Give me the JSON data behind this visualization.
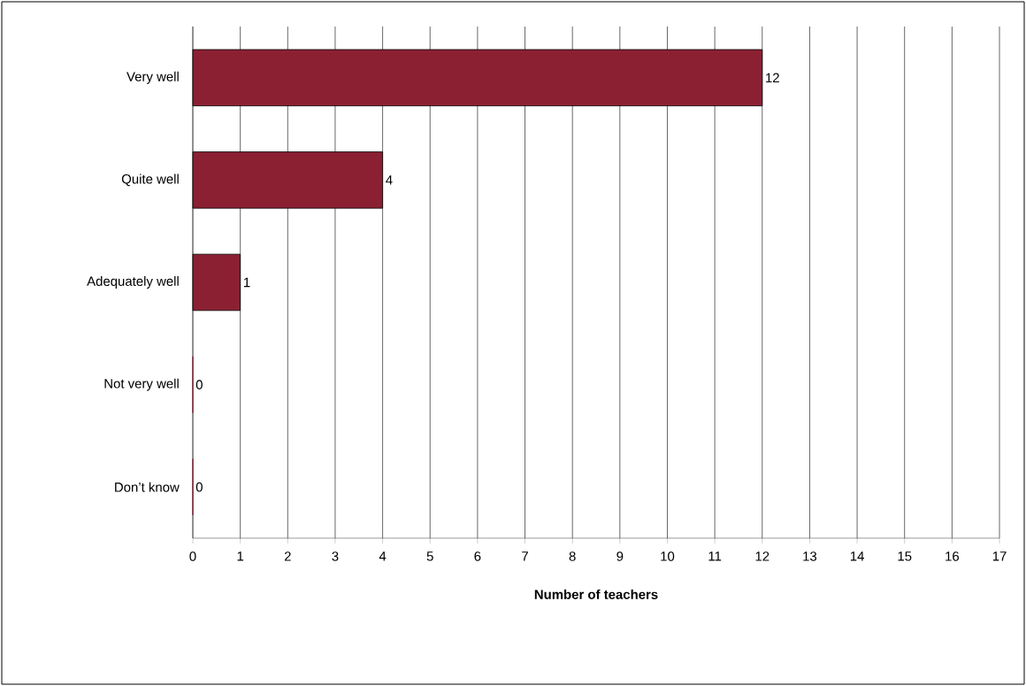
{
  "chart_data": {
    "type": "bar",
    "orientation": "horizontal",
    "xlabel": "Number of teachers",
    "categories": [
      "Very well",
      "Quite well",
      "Adequately well",
      "Not very well",
      "Don’t know"
    ],
    "values": [
      12,
      4,
      1,
      0,
      0
    ],
    "color": "#8b2033",
    "xlim": [
      0,
      17
    ],
    "xticks": [
      0,
      1,
      2,
      3,
      4,
      5,
      6,
      7,
      8,
      9,
      10,
      11,
      12,
      13,
      14,
      15,
      16,
      17
    ],
    "grid": "x",
    "data_labels": true
  }
}
